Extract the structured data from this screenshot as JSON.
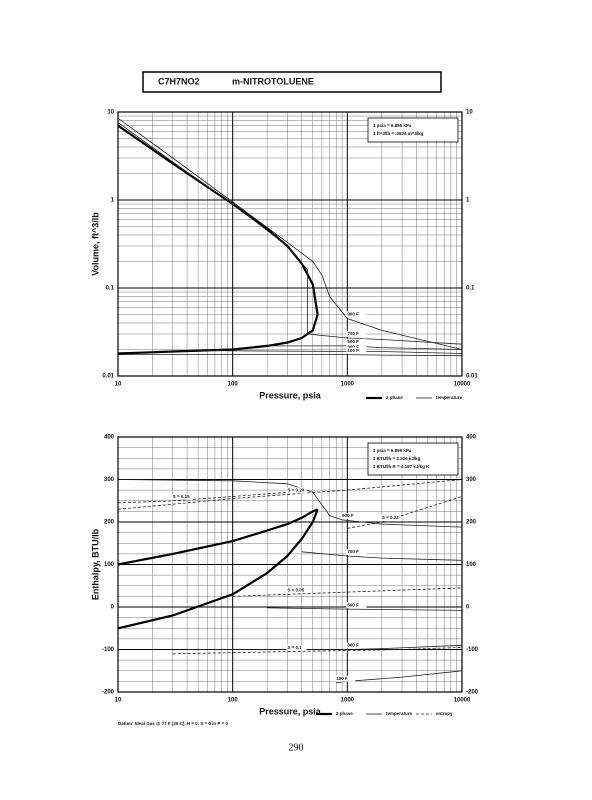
{
  "header": {
    "formula": "C7H7NO2",
    "name": "m-NITROTOLUENE"
  },
  "page_number": "290",
  "chart_data": [
    {
      "type": "line",
      "x_label": "Pressure,  psia",
      "y_label": "Volume, ft^3/lb",
      "xlog": true,
      "ylog": true,
      "grid": true,
      "xlim": [
        10,
        10000
      ],
      "ylim": [
        0.01,
        10
      ],
      "xticks": [
        10,
        100,
        1000,
        10000
      ],
      "yticks": [
        0.01,
        0.1,
        1,
        10
      ],
      "notes": [
        "1 psia = 6.895 kPa",
        "1 ft^3/lb = .0624 m^3/kg"
      ],
      "legend": [
        {
          "label": "2 phase",
          "kind": "two_phase"
        },
        {
          "label": "temperature",
          "kind": "temperature"
        }
      ],
      "series": [
        {
          "kind": "two_phase",
          "x": [
            10,
            30,
            100,
            200,
            300,
            400,
            500,
            550
          ],
          "values": [
            0.018,
            0.019,
            0.02,
            0.022,
            0.024,
            0.027,
            0.033,
            0.05
          ]
        },
        {
          "kind": "two_phase",
          "x": [
            10,
            30,
            100,
            200,
            300,
            400,
            500,
            550
          ],
          "values": [
            7,
            2.6,
            0.9,
            0.47,
            0.3,
            0.19,
            0.11,
            0.05
          ]
        },
        {
          "kind": "temperature",
          "name": "900 F",
          "x": [
            10,
            30,
            100,
            300,
            500,
            600,
            700,
            1000,
            2000,
            10000
          ],
          "values": [
            8.5,
            3,
            0.95,
            0.33,
            0.2,
            0.14,
            0.08,
            0.045,
            0.033,
            0.02
          ]
        },
        {
          "kind": "temperature",
          "name": "700 F",
          "x": [
            10,
            30,
            100,
            300,
            450,
            450,
            1000,
            2000,
            10000
          ],
          "values": [
            7.6,
            2.7,
            0.9,
            0.3,
            0.16,
            0.03,
            0.027,
            0.026,
            0.023
          ]
        },
        {
          "kind": "temperature",
          "name": "500 F",
          "x": [
            200,
            1000,
            2000,
            10000
          ],
          "values": [
            0.022,
            0.022,
            0.021,
            0.02
          ]
        },
        {
          "kind": "temperature",
          "name": "300 F",
          "x": [
            40,
            1000,
            2000,
            10000
          ],
          "values": [
            0.0195,
            0.019,
            0.019,
            0.018
          ]
        },
        {
          "kind": "temperature",
          "name": "100 F",
          "x": [
            10,
            1000,
            2000,
            10000
          ],
          "values": [
            0.0175,
            0.0175,
            0.0173,
            0.017
          ]
        }
      ]
    },
    {
      "type": "line",
      "x_label": "Pressure,  psia",
      "y_label": "Enthalpy, BTU/lb",
      "xlog": true,
      "ylog": false,
      "grid": true,
      "xlim": [
        10,
        10000
      ],
      "ylim": [
        -200,
        400
      ],
      "xticks": [
        10,
        100,
        1000,
        10000
      ],
      "yticks": [
        -200,
        -100,
        0,
        100,
        200,
        300,
        400
      ],
      "notes": [
        "1 psia = 6.895 kPa",
        "1 BTU/lb = 2.326 kJ/kg",
        "1 BTU/lb R = 4.187 kJ/kg K"
      ],
      "footnote": "Datum: Ideal Gas @ 77 F (25 C), H = 0, S = 0 in P = 0",
      "legend": [
        {
          "label": "2 phase",
          "kind": "two_phase"
        },
        {
          "label": "temperature",
          "kind": "temperature"
        },
        {
          "label": "entropy",
          "kind": "entropy"
        }
      ],
      "series": [
        {
          "kind": "two_phase",
          "x": [
            10,
            30,
            100,
            200,
            300,
            400,
            500,
            550
          ],
          "values": [
            -50,
            -20,
            30,
            80,
            120,
            160,
            200,
            230
          ]
        },
        {
          "kind": "two_phase",
          "x": [
            10,
            30,
            100,
            200,
            300,
            400,
            500,
            550
          ],
          "values": [
            100,
            125,
            155,
            180,
            195,
            210,
            225,
            230
          ]
        },
        {
          "kind": "temperature",
          "name": "900 F",
          "x": [
            10,
            100,
            300,
            500,
            700,
            900,
            2000,
            10000
          ],
          "values": [
            300,
            297,
            290,
            270,
            215,
            205,
            195,
            188
          ]
        },
        {
          "kind": "temperature",
          "name": "700 F",
          "x": [
            400,
            1000,
            2000,
            10000
          ],
          "values": [
            130,
            120,
            115,
            110
          ]
        },
        {
          "kind": "temperature",
          "name": "500 F",
          "x": [
            200,
            1000,
            2000,
            10000
          ],
          "values": [
            -2,
            -5,
            -6,
            -8
          ]
        },
        {
          "kind": "temperature",
          "name": "300 F",
          "x": [
            40,
            1000,
            2000,
            10000
          ],
          "values": [
            -100,
            -100,
            -98,
            -90
          ]
        },
        {
          "kind": "temperature",
          "name": "100 F",
          "x": [
            800,
            1000,
            3000,
            10000
          ],
          "values": [
            -178,
            -175,
            -165,
            -150
          ]
        },
        {
          "kind": "entropy",
          "name": "S = 0.20",
          "x": [
            10,
            100,
            300,
            1000,
            10000
          ],
          "values": [
            230,
            255,
            265,
            275,
            300
          ]
        },
        {
          "kind": "entropy",
          "name": "S = 0.15",
          "x": [
            10,
            30,
            100,
            300
          ],
          "values": [
            245,
            250,
            260,
            270
          ]
        },
        {
          "kind": "entropy",
          "name": "S = 0.22",
          "x": [
            1000,
            2000,
            3000,
            10000
          ],
          "values": [
            185,
            200,
            215,
            260
          ]
        },
        {
          "kind": "entropy",
          "name": "S = 0.05",
          "x": [
            100,
            300,
            1000,
            10000
          ],
          "values": [
            25,
            30,
            35,
            45
          ]
        },
        {
          "kind": "entropy",
          "name": "S = 0.1",
          "x": [
            30,
            300,
            3000,
            10000
          ],
          "values": [
            -110,
            -105,
            -100,
            -95
          ]
        }
      ]
    }
  ]
}
